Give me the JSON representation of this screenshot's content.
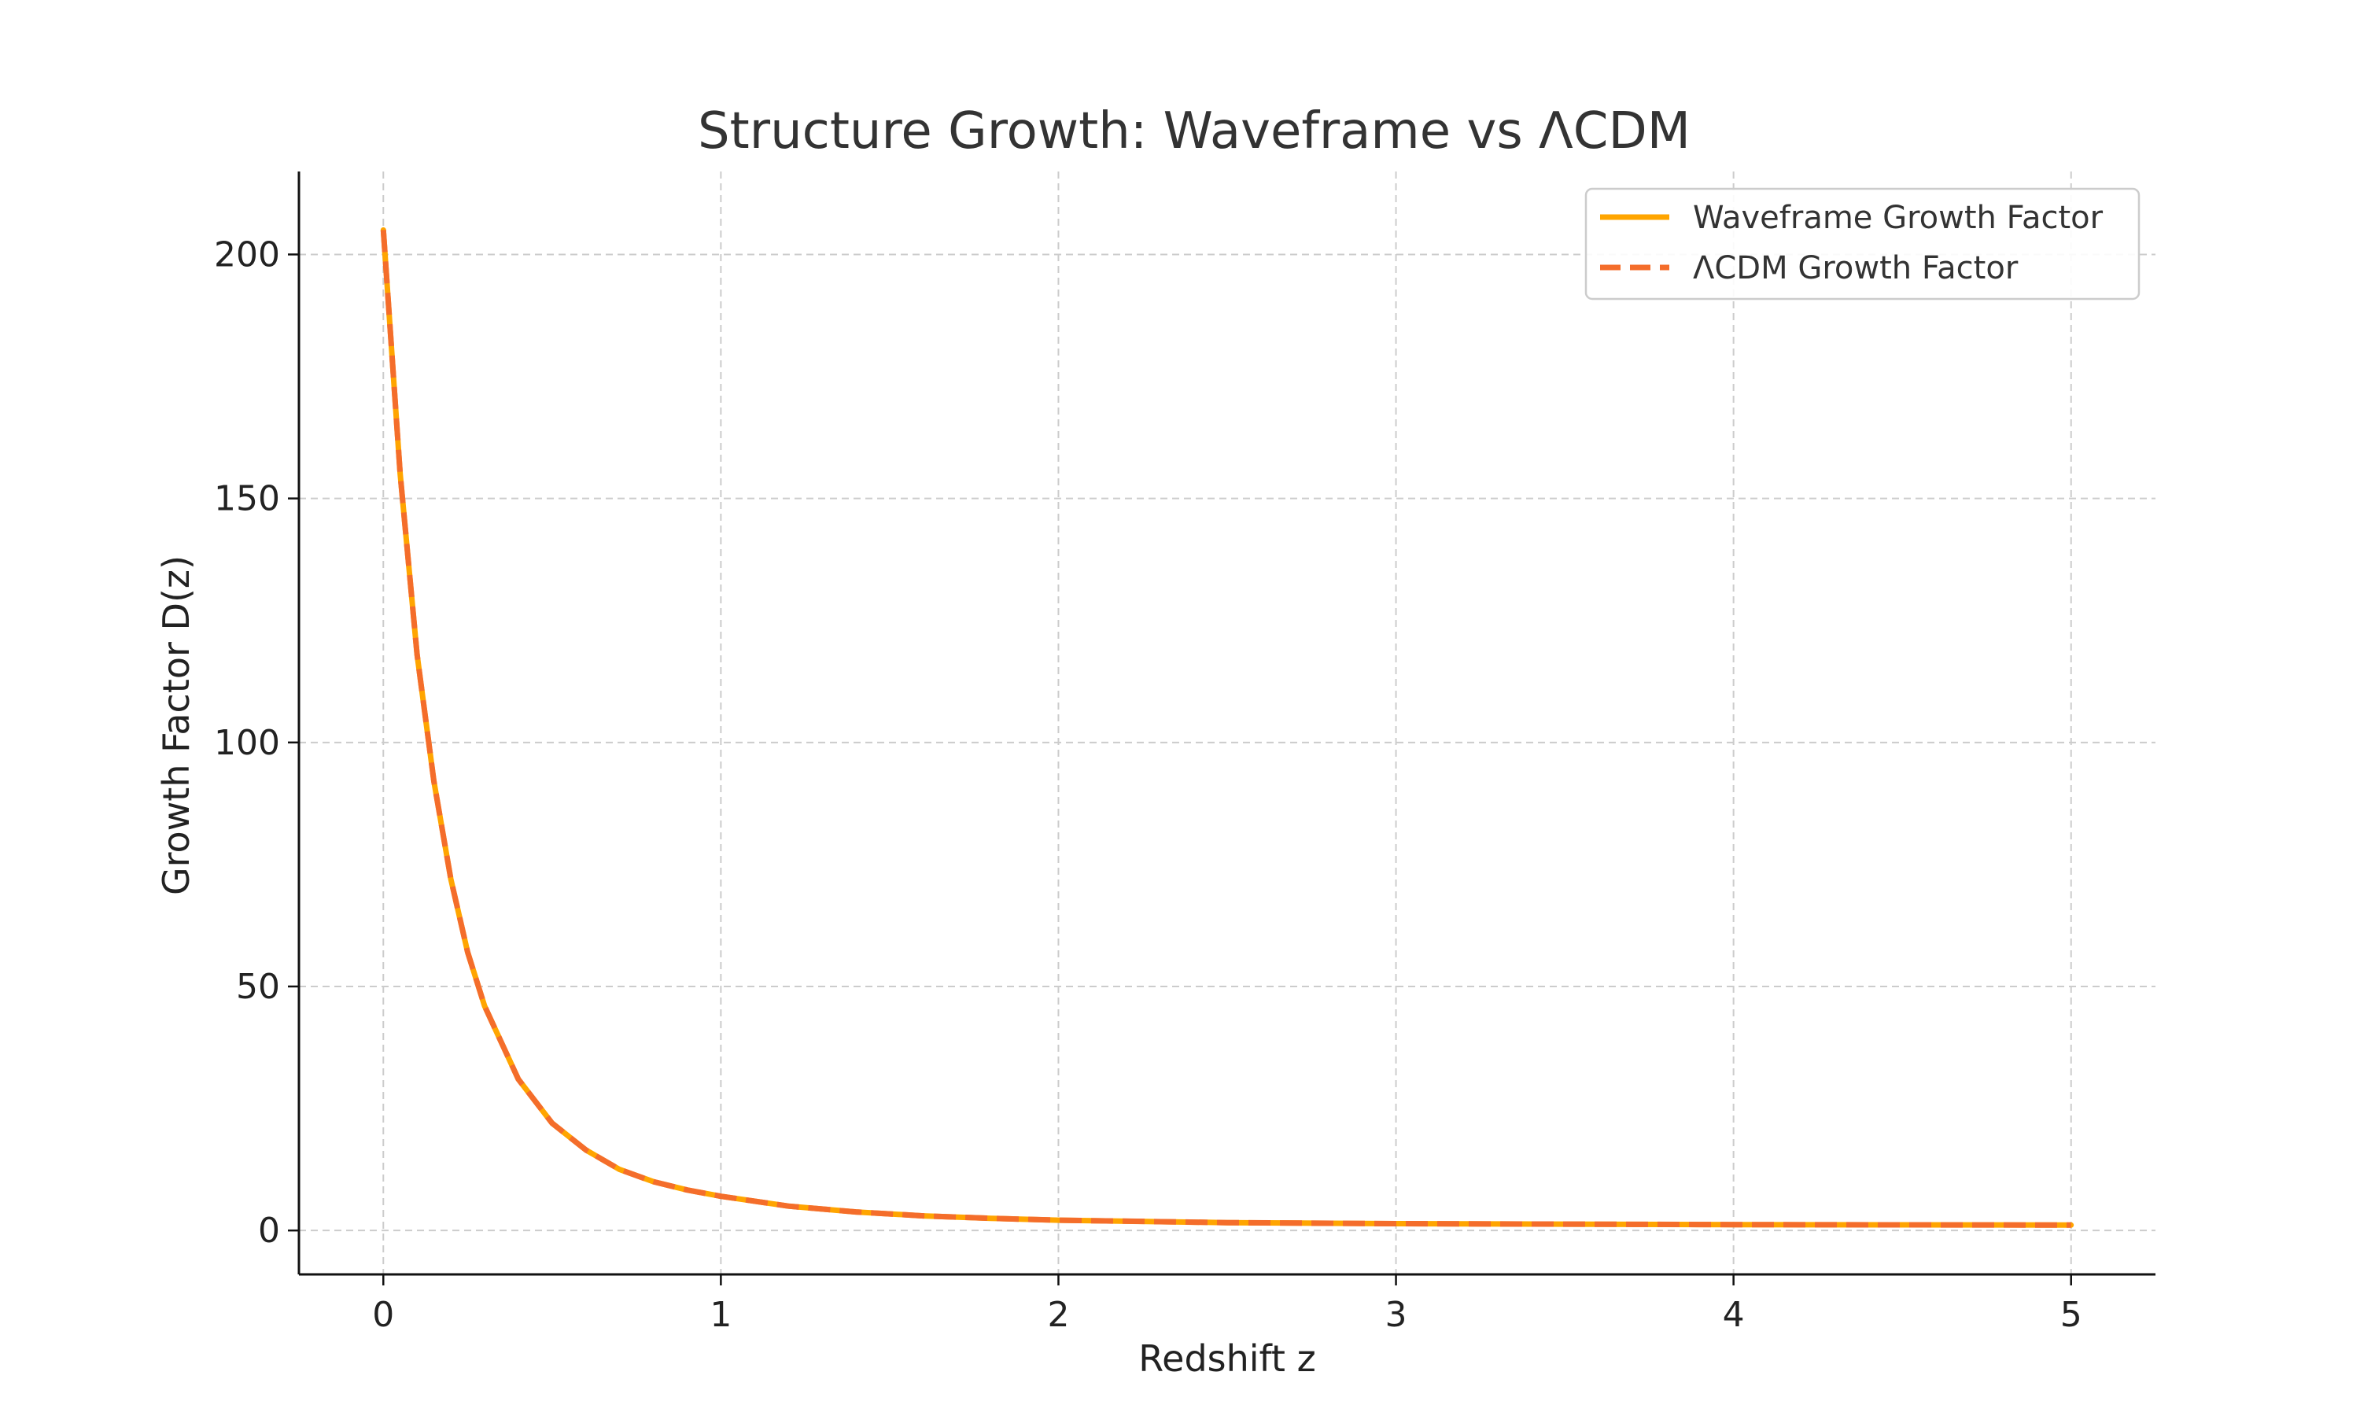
{
  "chart_data": {
    "type": "line",
    "title": "Structure Growth: Waveframe vs ΛCDM",
    "xlabel": "Redshift z",
    "ylabel": "Growth Factor D(z)",
    "xlim": [
      -0.25,
      5.25
    ],
    "ylim": [
      -9,
      217
    ],
    "xticks": [
      0,
      1,
      2,
      3,
      4,
      5
    ],
    "yticks": [
      0,
      50,
      100,
      150,
      200
    ],
    "grid": true,
    "legend_position": "top-right",
    "x": [
      0,
      0.05,
      0.1,
      0.15,
      0.2,
      0.25,
      0.3,
      0.4,
      0.5,
      0.6,
      0.7,
      0.8,
      0.9,
      1.0,
      1.2,
      1.4,
      1.6,
      1.8,
      2.0,
      2.5,
      3.0,
      3.5,
      4.0,
      4.5,
      5.0
    ],
    "series": [
      {
        "name": "Waveframe Growth Factor",
        "color": "#ffa500",
        "style": "solid",
        "values": [
          205,
          155,
          118,
          92,
          72,
          57,
          46,
          31,
          22,
          16.5,
          12.5,
          10,
          8.3,
          7,
          5,
          3.8,
          3,
          2.5,
          2.1,
          1.6,
          1.4,
          1.3,
          1.2,
          1.15,
          1.1
        ]
      },
      {
        "name": "ΛCDM Growth Factor",
        "color": "#f46d2b",
        "style": "dashed",
        "values": [
          205,
          155,
          118,
          92,
          72,
          57,
          46,
          31,
          22,
          16.5,
          12.5,
          10,
          8.3,
          7,
          5,
          3.8,
          3,
          2.5,
          2.1,
          1.6,
          1.4,
          1.3,
          1.2,
          1.15,
          1.1
        ]
      }
    ]
  }
}
